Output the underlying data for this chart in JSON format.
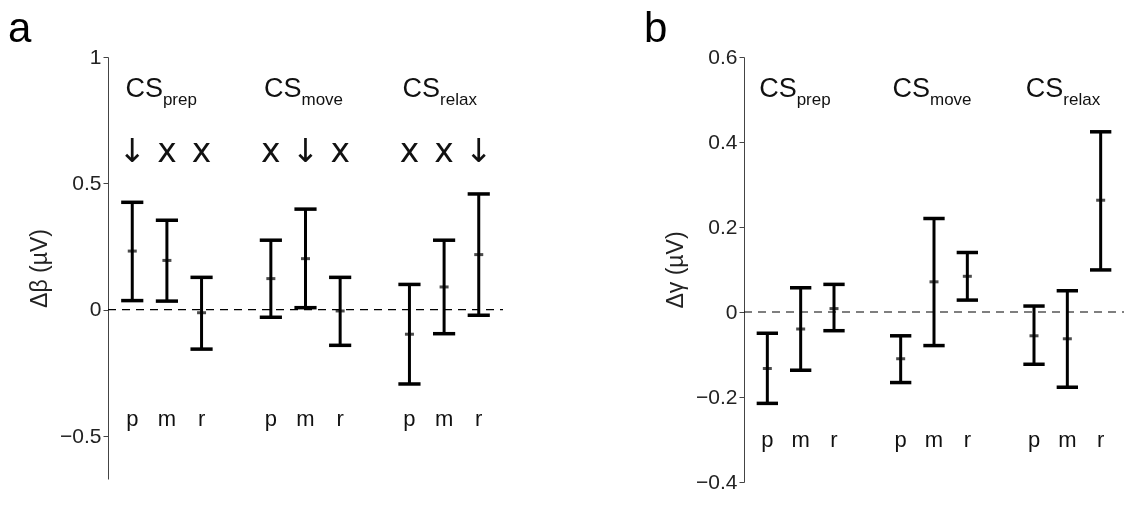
{
  "chart_data": [
    {
      "type": "scatter",
      "ylabel": "Δβ (µV)",
      "categories": [
        "p",
        "m",
        "r",
        null,
        "p",
        "m",
        "r",
        null,
        "p",
        "m",
        "r"
      ],
      "values": [
        0.232,
        0.195,
        -0.012,
        null,
        0.123,
        0.202,
        -0.005,
        null,
        -0.097,
        0.09,
        0.218
      ],
      "errors": [
        [
          0.036,
          0.425
        ],
        [
          0.034,
          0.354
        ],
        [
          -0.156,
          0.128
        ],
        null,
        [
          -0.03,
          0.275
        ],
        [
          0.008,
          0.398
        ],
        [
          -0.141,
          0.128
        ],
        null,
        [
          -0.294,
          0.1
        ],
        [
          -0.095,
          0.275
        ],
        [
          -0.022,
          0.458
        ]
      ],
      "color": "#000000",
      "marker": "square",
      "ylim": [
        -0.67,
        1
      ],
      "yticks": [
        -0.5,
        0,
        0.5,
        1
      ],
      "grid": false,
      "ref_lines": [
        {
          "axis": "y",
          "value": 0,
          "line_style": "dashed",
          "color": "#000000"
        }
      ],
      "annotations": [
        "a",
        "CS$_{prep}$",
        "CS$_{move}$",
        "CS$_{relax}$",
        "↓",
        "x",
        "x",
        "x",
        "↓",
        "x",
        "x",
        "x",
        "↓"
      ]
    },
    {
      "type": "scatter",
      "ylabel": "Δγ (µV)",
      "categories": [
        "p",
        "m",
        "r",
        null,
        "p",
        "m",
        "r",
        null,
        "p",
        "m",
        "r"
      ],
      "values": [
        -0.133,
        -0.04,
        0.008,
        null,
        -0.11,
        0.071,
        0.084,
        null,
        -0.056,
        -0.063,
        0.263
      ],
      "errors": [
        [
          -0.215,
          -0.05
        ],
        [
          -0.137,
          0.057
        ],
        [
          -0.044,
          0.065
        ],
        null,
        [
          -0.166,
          -0.056
        ],
        [
          -0.079,
          0.22
        ],
        [
          0.028,
          0.14
        ],
        null,
        [
          -0.123,
          0.014
        ],
        [
          -0.177,
          0.05
        ],
        [
          0.099,
          0.424
        ]
      ],
      "color": "#000000",
      "marker": "square",
      "ylim": [
        -0.4,
        0.6
      ],
      "yticks": [
        -0.4,
        -0.2,
        0,
        0.2,
        0.4,
        0.6
      ],
      "grid": false,
      "ref_lines": [
        {
          "axis": "y",
          "value": 0,
          "line_style": "dashed",
          "color": "#000000"
        }
      ],
      "annotations": [
        "b",
        "CS$_{prep}$",
        "CS$_{move}$",
        "CS$_{relax}$"
      ]
    }
  ]
}
